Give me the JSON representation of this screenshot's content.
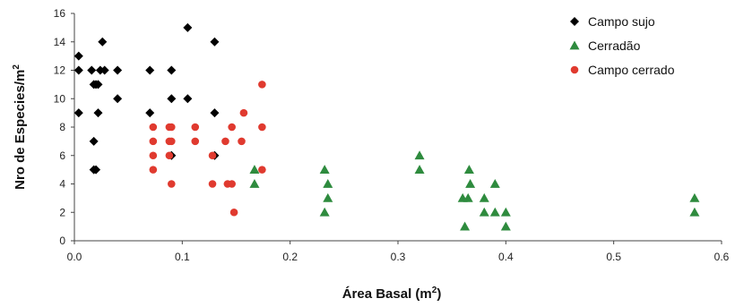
{
  "chart_data": {
    "type": "scatter",
    "xlabel": "Área Basal (m",
    "xlabel_sup": "2",
    "xlabel_end": ")",
    "ylabel": "Nro de Especies/m",
    "ylabel_sup": "2",
    "xlim": [
      0,
      0.6
    ],
    "ylim": [
      0,
      16
    ],
    "x_ticks": [
      "0.0",
      "0.1",
      "0.2",
      "0.3",
      "0.4",
      "0.5",
      "0.6"
    ],
    "y_ticks": [
      "0",
      "2",
      "4",
      "6",
      "8",
      "10",
      "12",
      "14",
      "16"
    ],
    "grid": false,
    "legend_position": "top-right",
    "series": [
      {
        "name": "Campo sujo",
        "marker": "diamond",
        "color": "#000000",
        "points": [
          [
            0.004,
            13
          ],
          [
            0.004,
            12
          ],
          [
            0.004,
            9
          ],
          [
            0.016,
            12
          ],
          [
            0.018,
            11
          ],
          [
            0.02,
            11
          ],
          [
            0.022,
            11
          ],
          [
            0.024,
            12
          ],
          [
            0.026,
            14
          ],
          [
            0.028,
            12
          ],
          [
            0.022,
            9
          ],
          [
            0.018,
            7
          ],
          [
            0.018,
            5
          ],
          [
            0.02,
            5
          ],
          [
            0.04,
            12
          ],
          [
            0.04,
            10
          ],
          [
            0.07,
            12
          ],
          [
            0.07,
            9
          ],
          [
            0.09,
            12
          ],
          [
            0.09,
            10
          ],
          [
            0.09,
            6
          ],
          [
            0.105,
            15
          ],
          [
            0.105,
            10
          ],
          [
            0.13,
            14
          ],
          [
            0.13,
            9
          ],
          [
            0.13,
            6
          ]
        ]
      },
      {
        "name": "Cerradão",
        "marker": "triangle",
        "color": "#2e8b3e",
        "points": [
          [
            0.167,
            5
          ],
          [
            0.167,
            4
          ],
          [
            0.232,
            5
          ],
          [
            0.232,
            2
          ],
          [
            0.235,
            4
          ],
          [
            0.235,
            3
          ],
          [
            0.32,
            6
          ],
          [
            0.32,
            5
          ],
          [
            0.36,
            3
          ],
          [
            0.362,
            1
          ],
          [
            0.365,
            3
          ],
          [
            0.366,
            5
          ],
          [
            0.367,
            4
          ],
          [
            0.38,
            3
          ],
          [
            0.38,
            2
          ],
          [
            0.39,
            4
          ],
          [
            0.39,
            2
          ],
          [
            0.4,
            2
          ],
          [
            0.4,
            1
          ],
          [
            0.575,
            3
          ],
          [
            0.575,
            2
          ]
        ]
      },
      {
        "name": "Campo cerrado",
        "marker": "circle",
        "color": "#e03a2f",
        "points": [
          [
            0.073,
            8
          ],
          [
            0.073,
            7
          ],
          [
            0.073,
            6
          ],
          [
            0.073,
            5
          ],
          [
            0.088,
            8
          ],
          [
            0.088,
            7
          ],
          [
            0.088,
            6
          ],
          [
            0.09,
            8
          ],
          [
            0.09,
            7
          ],
          [
            0.09,
            4
          ],
          [
            0.112,
            8
          ],
          [
            0.112,
            7
          ],
          [
            0.128,
            6
          ],
          [
            0.128,
            4
          ],
          [
            0.14,
            7
          ],
          [
            0.142,
            4
          ],
          [
            0.146,
            4
          ],
          [
            0.146,
            8
          ],
          [
            0.148,
            2
          ],
          [
            0.155,
            7
          ],
          [
            0.157,
            9
          ],
          [
            0.174,
            11
          ],
          [
            0.174,
            8
          ],
          [
            0.174,
            5
          ]
        ]
      }
    ]
  }
}
